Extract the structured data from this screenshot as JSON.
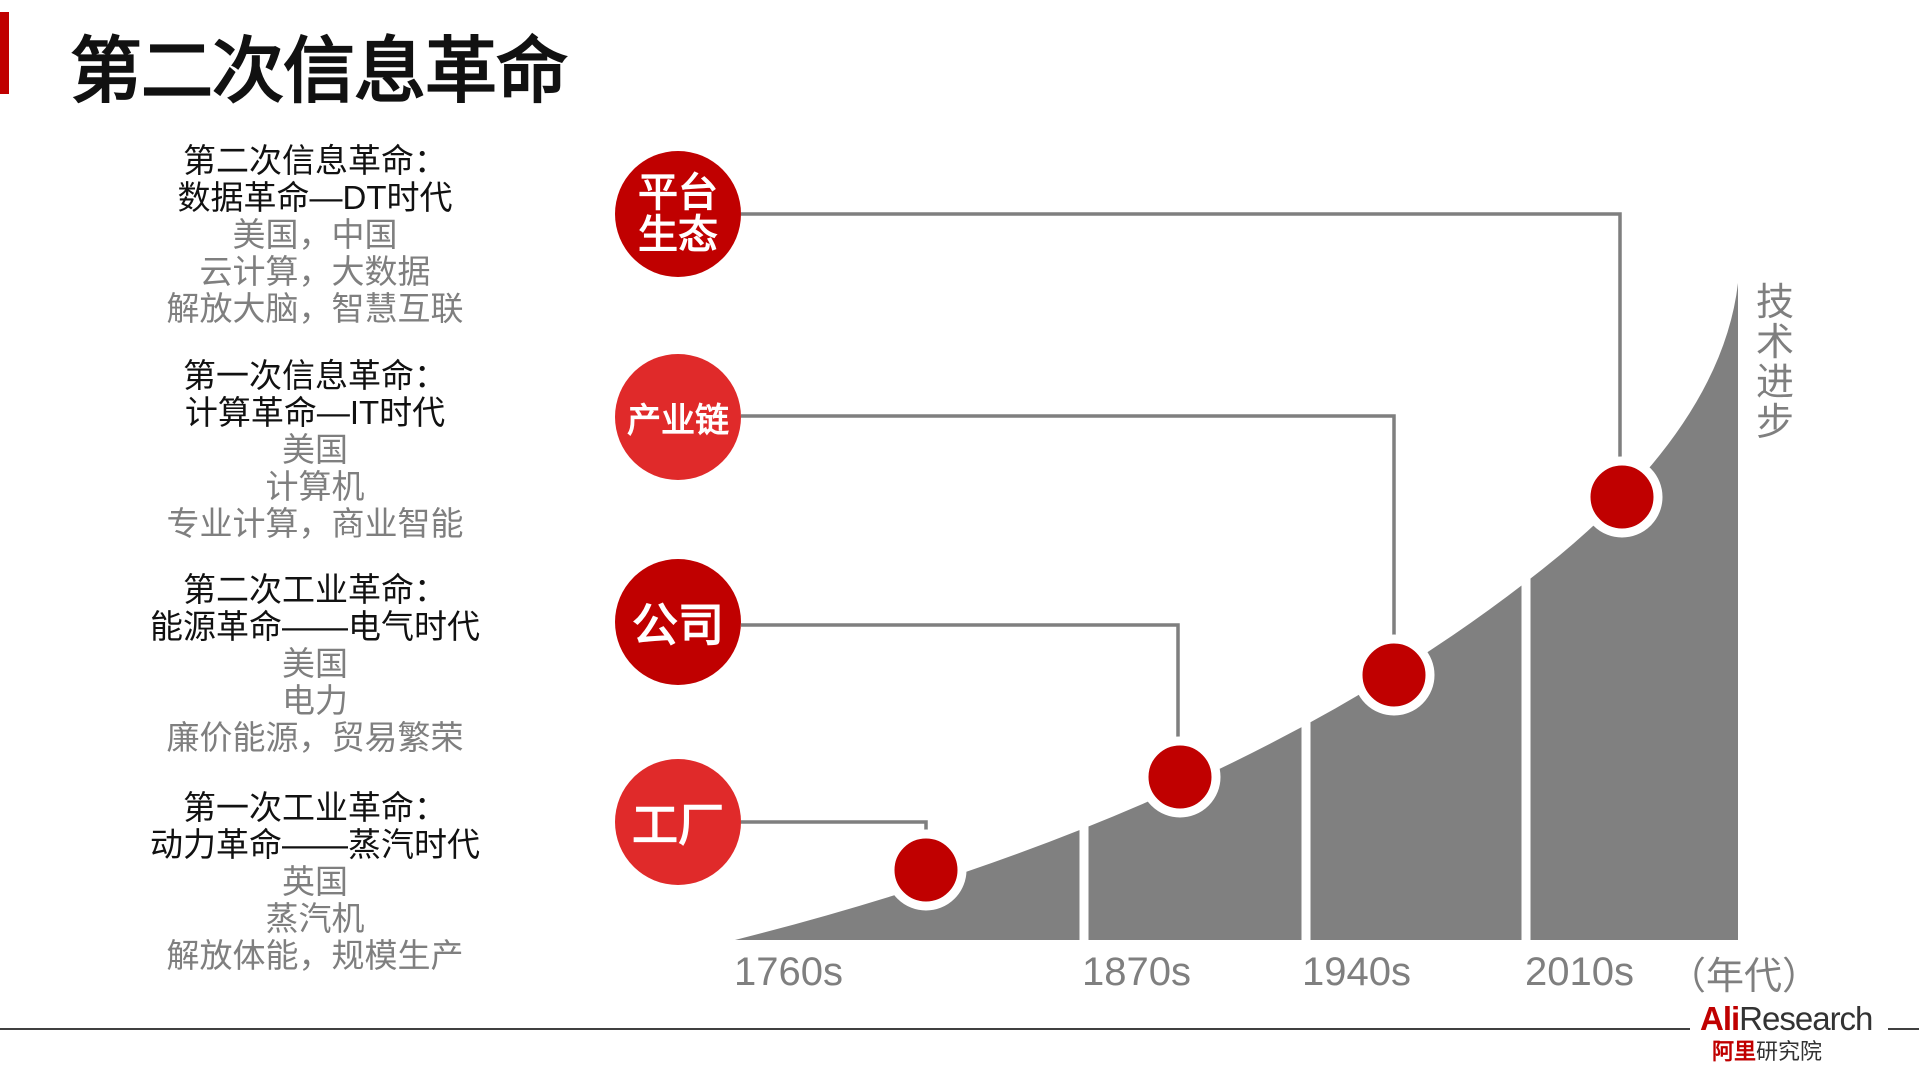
{
  "header": {
    "title": "第二次信息革命"
  },
  "eras": [
    {
      "heading_1": "第二次信息革命：",
      "heading_2": "数据革命—DT时代",
      "details": [
        "美国，中国",
        "云计算，大数据",
        "解放大脑，智慧互联"
      ],
      "badge": "平台\n生态"
    },
    {
      "heading_1": "第一次信息革命：",
      "heading_2": "计算革命—IT时代",
      "details": [
        "美国",
        "计算机",
        "专业计算，商业智能"
      ],
      "badge": "产业链"
    },
    {
      "heading_1": "第二次工业革命：",
      "heading_2": "能源革命——电气时代",
      "details": [
        "美国",
        "电力",
        "廉价能源，贸易繁荣"
      ],
      "badge": "公司"
    },
    {
      "heading_1": "第一次工业革命：",
      "heading_2": "动力革命——蒸汽时代",
      "details": [
        "英国",
        "蒸汽机",
        "解放体能，规模生产"
      ],
      "badge": "工厂"
    }
  ],
  "axis": {
    "x_labels": [
      "1760s",
      "1870s",
      "1940s",
      "2010s"
    ],
    "x_unit": "（年代）",
    "y_label": "技术进步"
  },
  "colors": {
    "accent": "#c00000",
    "badge_light": "#e02a2a",
    "curve_fill": "#808080",
    "connector": "#7f7f7f"
  },
  "logo": {
    "top_red": "Ali",
    "top_dark": "Research",
    "bottom_red": "阿里",
    "bottom_dark": "研究院"
  }
}
